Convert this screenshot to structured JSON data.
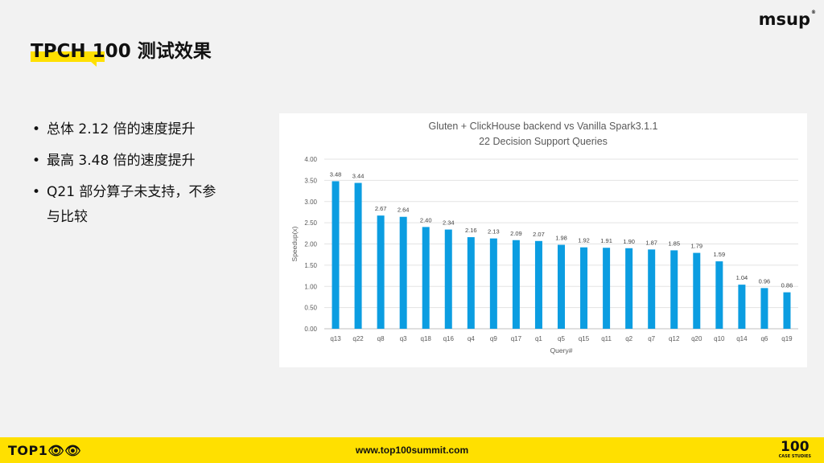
{
  "brand": {
    "logo_text": "msup",
    "logo_mark": "®"
  },
  "title": "TPCH 100 测试效果",
  "bullets": [
    {
      "text": "总体 2.12 倍的速度提升"
    },
    {
      "text": "最高 3.48 倍的速度提升"
    },
    {
      "line1": "Q21 部分算子未支持，不参",
      "line2": "与比较"
    }
  ],
  "chart_data": {
    "type": "bar",
    "title": "Gluten + ClickHouse backend vs Vanilla Spark3.1.1",
    "subtitle": "22 Decision Support Queries",
    "xlabel": "Query#",
    "ylabel": "Speedup(x)",
    "ylim": [
      0,
      4
    ],
    "yticks": [
      "0.00",
      "0.50",
      "1.00",
      "1.50",
      "2.00",
      "2.50",
      "3.00",
      "3.50",
      "4.00"
    ],
    "grid": true,
    "bar_color": "#0b9de1",
    "categories": [
      "q13",
      "q22",
      "q8",
      "q3",
      "q18",
      "q16",
      "q4",
      "q9",
      "q17",
      "q1",
      "q5",
      "q15",
      "q11",
      "q2",
      "q7",
      "q12",
      "q20",
      "q10",
      "q14",
      "q6",
      "q19"
    ],
    "values": [
      3.48,
      3.44,
      2.67,
      2.64,
      2.4,
      2.34,
      2.16,
      2.13,
      2.09,
      2.07,
      1.98,
      1.92,
      1.91,
      1.9,
      1.87,
      1.85,
      1.79,
      1.59,
      1.04,
      0.96,
      0.86
    ],
    "labels": [
      "3.48",
      "3.44",
      "2.67",
      "2.64",
      "2.40",
      "2.34",
      "2.16",
      "2.13",
      "2.09",
      "2.07",
      "1.98",
      "1.92",
      "1.91",
      "1.90",
      "1.87",
      "1.85",
      "1.79",
      "1.59",
      "1.04",
      "0.96",
      "0.86"
    ]
  },
  "footer": {
    "logo_text": "TOP1👁👁",
    "url": "www.top100summit.com",
    "badge_number": "100",
    "badge_sub": "CASE STUDIES"
  }
}
